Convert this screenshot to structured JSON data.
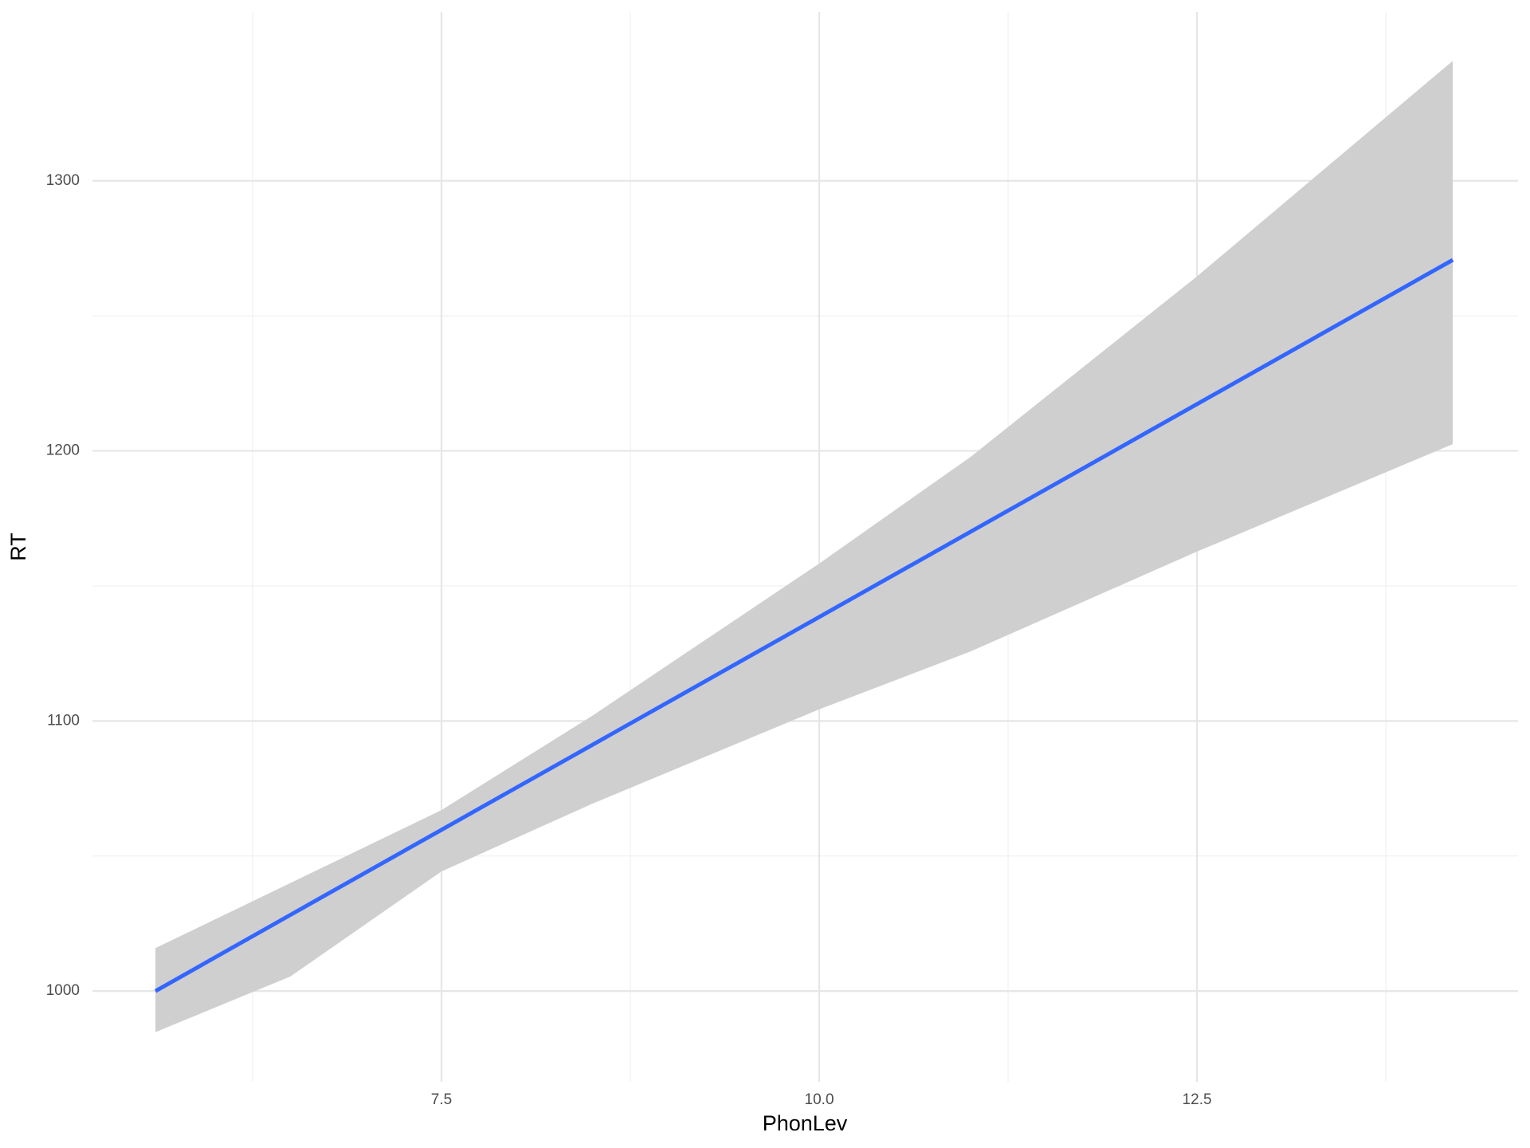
{
  "chart_data": {
    "type": "line",
    "x_label": "PhonLev",
    "y_label": "RT",
    "x": [
      5.607,
      6.5,
      7.5,
      8.5,
      10,
      11,
      12.5,
      14.193
    ],
    "series": [
      {
        "values": [
          1000,
          1028.2,
          1059.7,
          1091.2,
          1138.5,
          1170,
          1217.3,
          1270.7
        ],
        "lower": [
          984.8,
          1005.4,
          1044.3,
          1069.4,
          1104.3,
          1125.7,
          1162.7,
          1202.5
        ],
        "upper": [
          1015.9,
          1040,
          1067,
          1102,
          1158.3,
          1197.7,
          1264.6,
          1344.4
        ],
        "color": "#3366ff",
        "band_color": "#cfcfcf"
      }
    ],
    "xlim": [
      5.19,
      14.625
    ],
    "ylim": [
      966.4,
      1362.5
    ],
    "xticks": [
      7.5,
      {
        "value": 10,
        "label": "10.0"
      },
      12.5
    ],
    "yticks": [
      1000,
      1100,
      1200,
      1300
    ],
    "xminor": [
      6.25,
      8.75,
      11.25,
      13.75
    ],
    "yminor": [
      1050,
      1150,
      1250
    ],
    "grid": true
  }
}
